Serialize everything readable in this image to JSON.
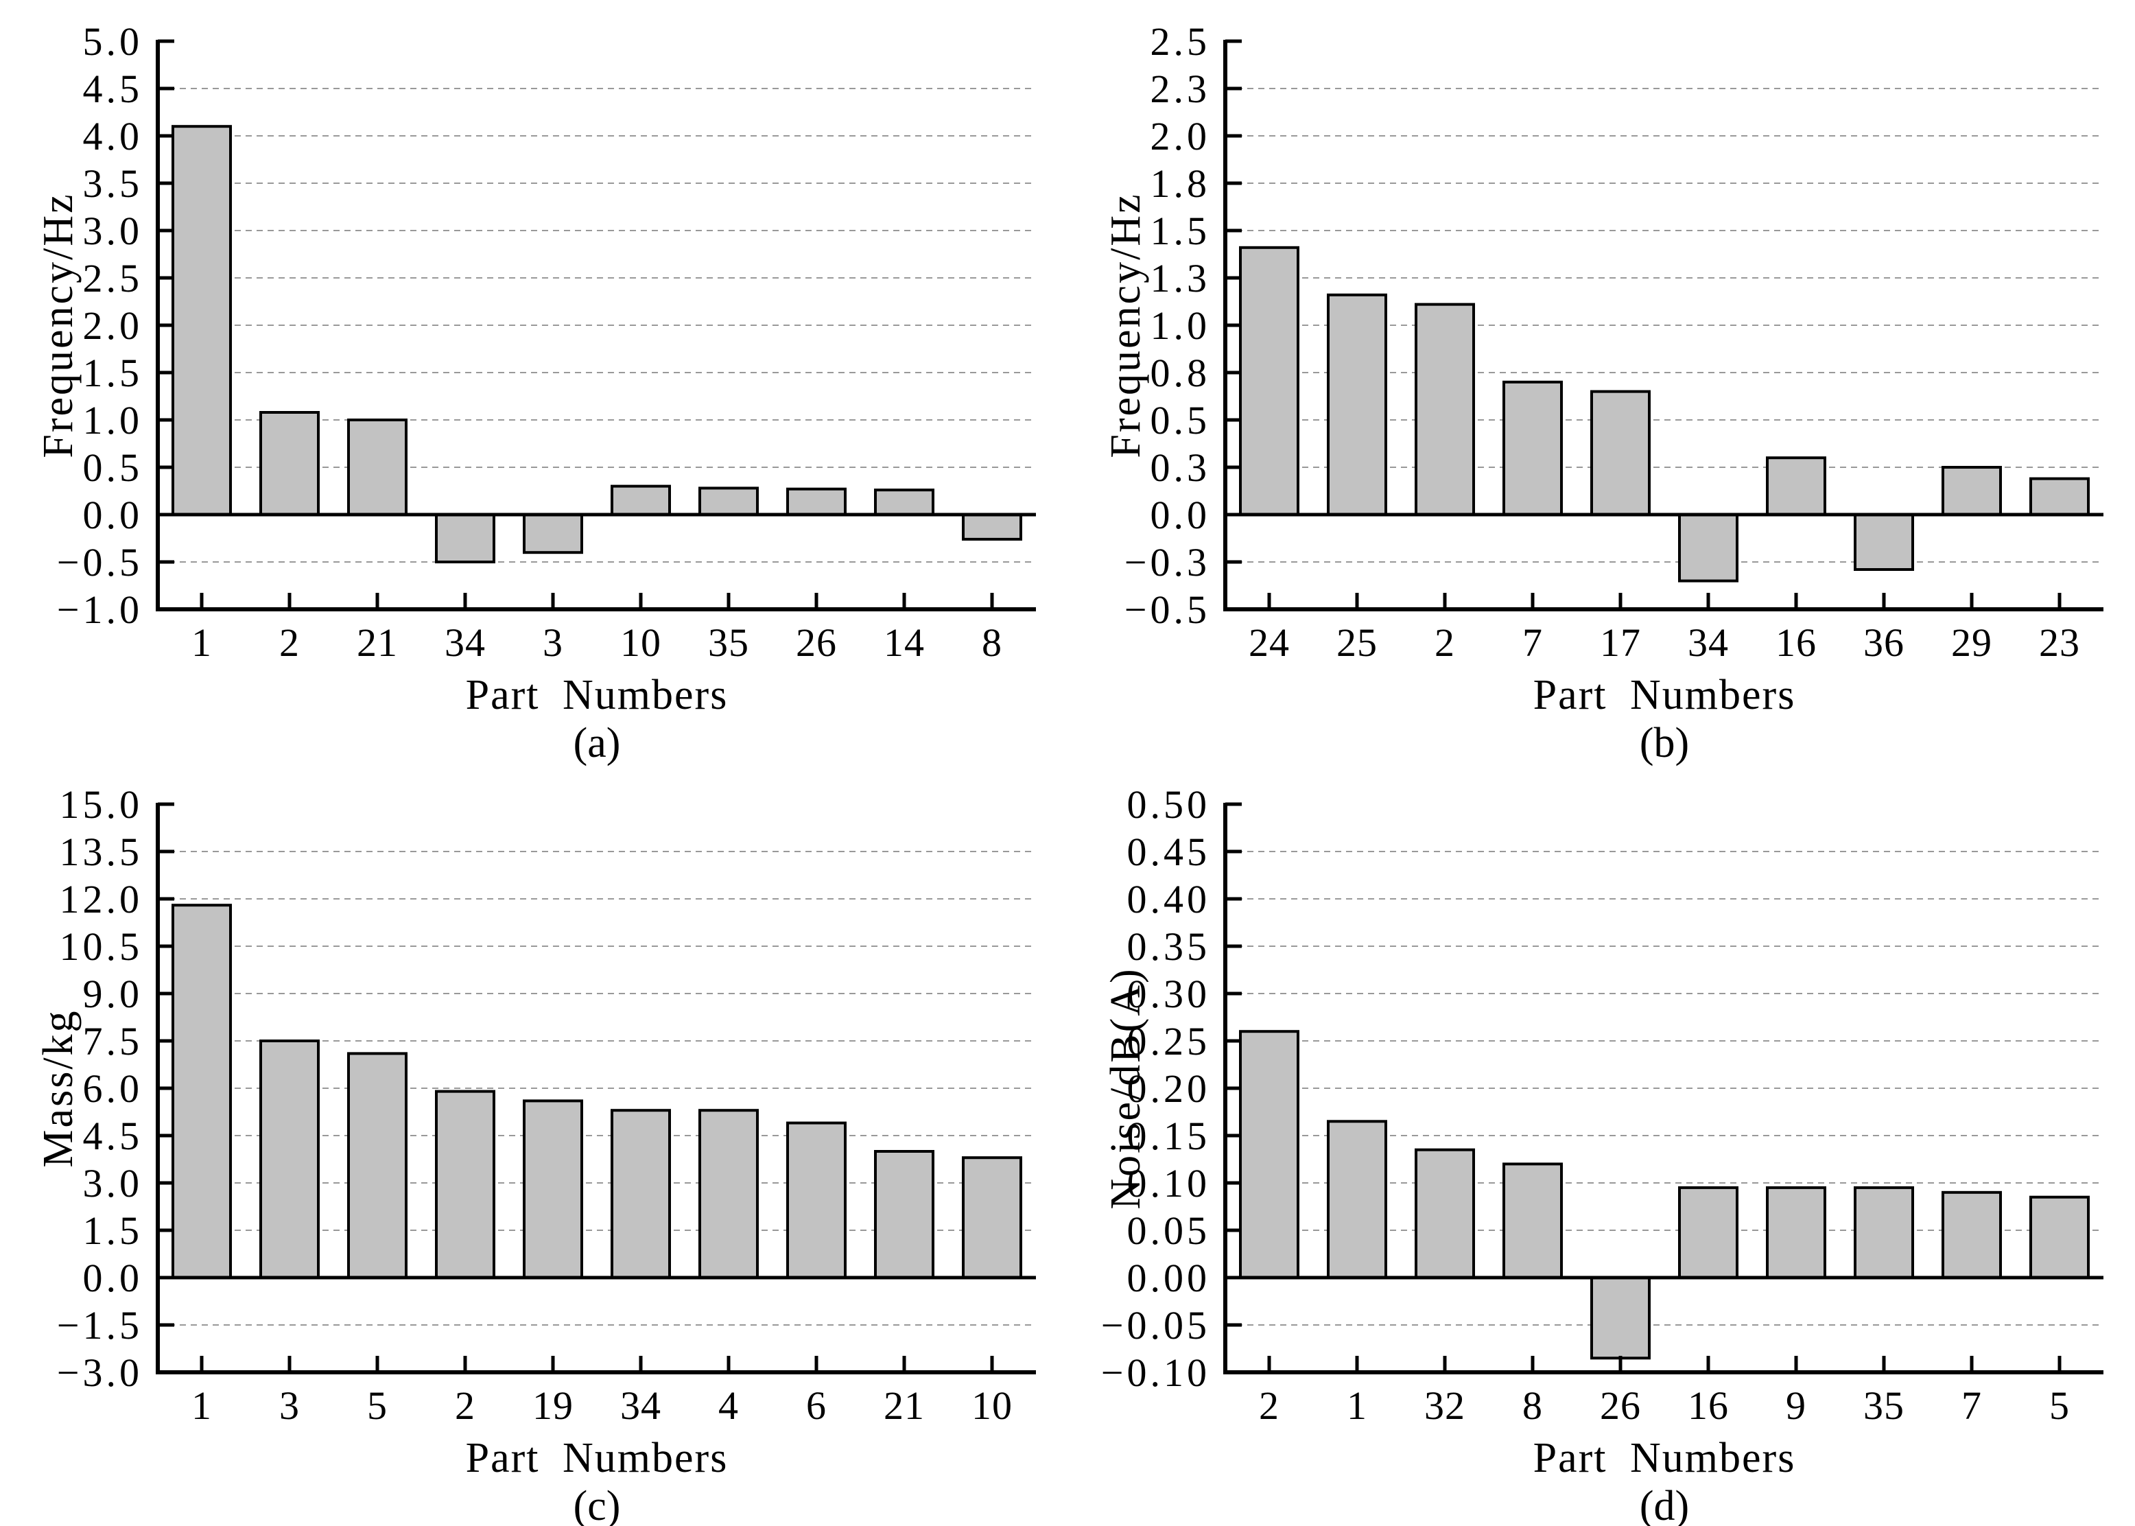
{
  "figure_title": "",
  "colors": {
    "background": "#ffffff",
    "bar_fill": "#c2c2c2",
    "bar_stroke": "#000000",
    "grid_line": "#999999",
    "axis_line": "#000000",
    "text": "#000000"
  },
  "chart_data": [
    {
      "type": "bar",
      "caption": "(a)",
      "xlabel": "Part Numbers",
      "ylabel": "Frequency/Hz",
      "ylim": [
        -1.0,
        5.0
      ],
      "grid": "horizontal dashed",
      "legend_position": "none",
      "ytick_values": [
        5.0,
        4.5,
        4.0,
        3.5,
        3.0,
        2.5,
        2.0,
        1.5,
        1.0,
        0.5,
        0.0,
        -0.5,
        -1.0
      ],
      "ytick_labels": [
        "5.0",
        "4.5",
        "4.0",
        "3.5",
        "3.0",
        "2.5",
        "2.0",
        "1.5",
        "1.0",
        "0.5",
        "0.0",
        "−0.5",
        "−1.0"
      ],
      "categories": [
        "1",
        "2",
        "21",
        "34",
        "3",
        "10",
        "35",
        "26",
        "14",
        "8"
      ],
      "values": [
        4.1,
        1.08,
        1.0,
        -0.5,
        -0.4,
        0.3,
        0.28,
        0.27,
        0.26,
        -0.26
      ]
    },
    {
      "type": "bar",
      "caption": "(b)",
      "xlabel": "Part Numbers",
      "ylabel": "Frequency/Hz",
      "ylim": [
        -0.5,
        2.5
      ],
      "grid": "horizontal dashed",
      "legend_position": "none",
      "ytick_values": [
        2.5,
        2.25,
        2.0,
        1.75,
        1.5,
        1.25,
        1.0,
        0.75,
        0.5,
        0.25,
        0.0,
        -0.25,
        -0.5
      ],
      "ytick_labels": [
        "2.5",
        "2.3",
        "2.0",
        "1.8",
        "1.5",
        "1.3",
        "1.0",
        "0.8",
        "0.5",
        "0.3",
        "0.0",
        "−0.3",
        "−0.5"
      ],
      "categories": [
        "24",
        "25",
        "2",
        "7",
        "17",
        "34",
        "16",
        "36",
        "29",
        "23"
      ],
      "values": [
        1.41,
        1.16,
        1.11,
        0.7,
        0.65,
        -0.35,
        0.3,
        -0.29,
        0.25,
        0.19
      ]
    },
    {
      "type": "bar",
      "caption": "(c)",
      "xlabel": "Part Numbers",
      "ylabel": "Mass/kg",
      "ylim": [
        -3.0,
        15.0
      ],
      "grid": "horizontal dashed",
      "legend_position": "none",
      "ytick_values": [
        15.0,
        13.5,
        12.0,
        10.5,
        9.0,
        7.5,
        6.0,
        4.5,
        3.0,
        1.5,
        0.0,
        -1.5,
        -3.0
      ],
      "ytick_labels": [
        "15.0",
        "13.5",
        "12.0",
        "10.5",
        "9.0",
        "7.5",
        "6.0",
        "4.5",
        "3.0",
        "1.5",
        "0.0",
        "−1.5",
        "−3.0"
      ],
      "categories": [
        "1",
        "3",
        "5",
        "2",
        "19",
        "34",
        "4",
        "6",
        "21",
        "10"
      ],
      "values": [
        11.8,
        7.5,
        7.1,
        5.9,
        5.6,
        5.3,
        5.3,
        4.9,
        4.0,
        3.8
      ]
    },
    {
      "type": "bar",
      "caption": "(d)",
      "xlabel": "Part Numbers",
      "ylabel": "Noise/dB(A)",
      "ylim": [
        -0.1,
        0.5
      ],
      "grid": "horizontal dashed",
      "legend_position": "none",
      "ytick_values": [
        0.5,
        0.45,
        0.4,
        0.35,
        0.3,
        0.25,
        0.2,
        0.15,
        0.1,
        0.05,
        0.0,
        -0.05,
        -0.1
      ],
      "ytick_labels": [
        "0.50",
        "0.45",
        "0.40",
        "0.35",
        "0.30",
        "0.25",
        "0.20",
        "0.15",
        "0.10",
        "0.05",
        "0.00",
        "−0.05",
        "−0.10"
      ],
      "categories": [
        "2",
        "1",
        "32",
        "8",
        "26",
        "16",
        "9",
        "35",
        "7",
        "5"
      ],
      "values": [
        0.26,
        0.165,
        0.135,
        0.12,
        -0.085,
        0.095,
        0.095,
        0.095,
        0.09,
        0.085
      ]
    }
  ]
}
